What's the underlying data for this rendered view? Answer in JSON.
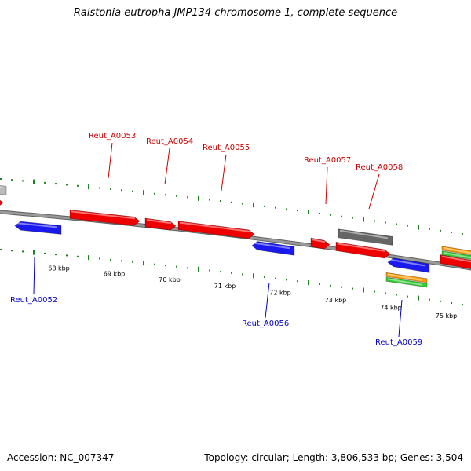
{
  "title": "Ralstonia eutropha JMP134 chromosome 1, complete sequence",
  "footer": {
    "accession": "Accession: NC_007347",
    "summary": "Topology: circular; Length: 3,806,533 bp; Genes: 3,504"
  },
  "colors": {
    "forward_gene": "#ee0000",
    "reverse_gene": "#1a1aee",
    "pseudo_gene": "#666666",
    "other_gene": "#bbbbbb",
    "rna_orange": "#ff9900",
    "rna_green": "#33cc33",
    "forward_label": "#cc0000",
    "reverse_label": "#0000cc",
    "backbone": "#808080",
    "tick": "#208020"
  },
  "kbp_ticks": [
    {
      "label": "68 kbp",
      "pos": 68
    },
    {
      "label": "69 kbp",
      "pos": 69
    },
    {
      "label": "70 kbp",
      "pos": 70
    },
    {
      "label": "71 kbp",
      "pos": 71
    },
    {
      "label": "72 kbp",
      "pos": 72
    },
    {
      "label": "73 kbp",
      "pos": 73
    },
    {
      "label": "74 kbp",
      "pos": 74
    },
    {
      "label": "75 kbp",
      "pos": 75
    }
  ],
  "gene_labels": [
    {
      "name": "Reut_A0052",
      "strand": "reverse"
    },
    {
      "name": "Reut_A0053",
      "strand": "forward"
    },
    {
      "name": "Reut_A0054",
      "strand": "forward"
    },
    {
      "name": "Reut_A0055",
      "strand": "forward"
    },
    {
      "name": "Reut_A0056",
      "strand": "reverse"
    },
    {
      "name": "Reut_A0057",
      "strand": "forward"
    },
    {
      "name": "Reut_A0058",
      "strand": "forward"
    },
    {
      "name": "Reut_A0059",
      "strand": "reverse"
    }
  ]
}
